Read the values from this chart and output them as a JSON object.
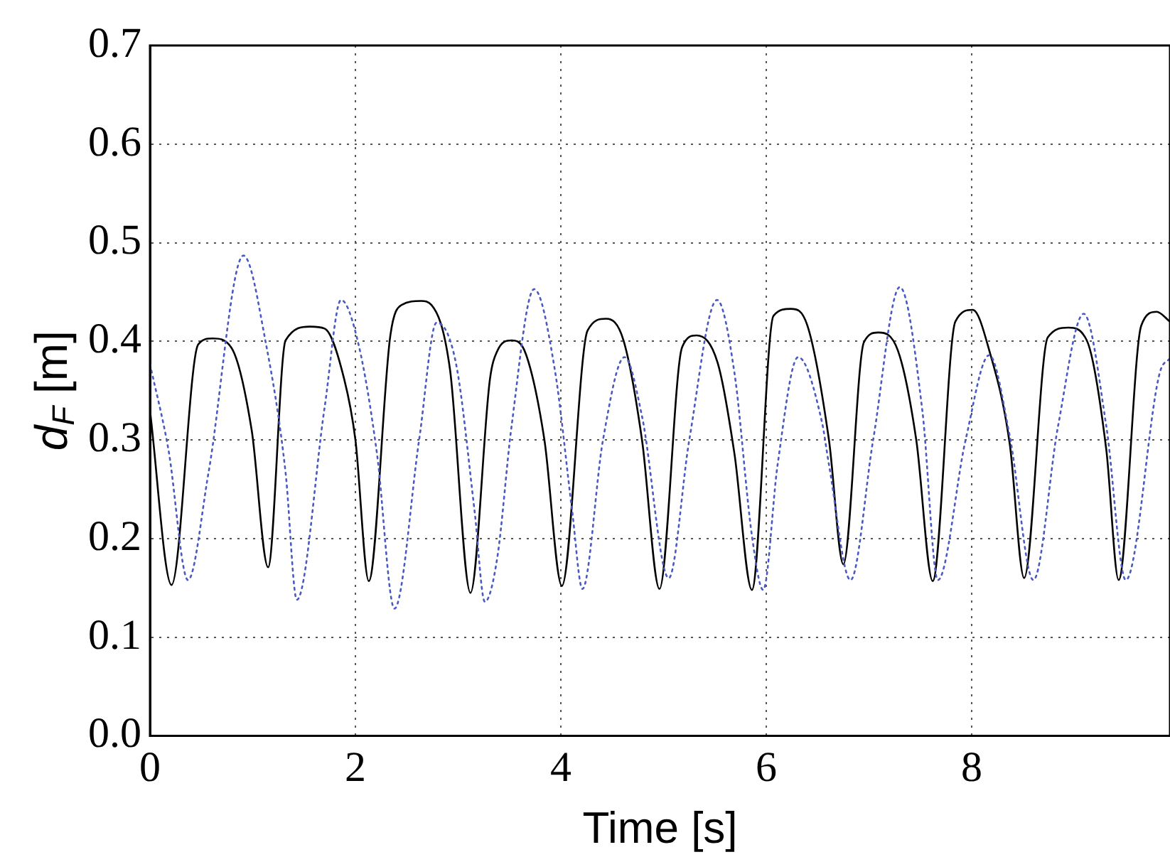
{
  "chart_data": {
    "type": "line",
    "xlabel": "Time [s]",
    "ylabel": "d$_{F}$ [m]",
    "xlim": [
      0,
      9.93
    ],
    "xticks": [
      0,
      2,
      4,
      6,
      8
    ],
    "ylim": [
      0,
      0.7
    ],
    "yticks": [
      {
        "value": 0,
        "label": "0.0"
      },
      0.1,
      0.2,
      0.3,
      0.4,
      0.5,
      0.6,
      0.7
    ],
    "grid": true,
    "marker": "none",
    "series": [
      {
        "color": "#4a5ac0",
        "line_style": "dotted",
        "x": [
          0,
          0.18,
          0.37,
          0.57,
          0.91,
          1.13,
          1.32,
          1.43,
          1.7,
          1.86,
          2.03,
          2.21,
          2.38,
          2.62,
          2.79,
          2.98,
          3.16,
          3.26,
          3.38,
          3.52,
          3.74,
          3.94,
          4.11,
          4.21,
          4.41,
          4.62,
          4.79,
          5.05,
          5.25,
          5.52,
          5.69,
          5.86,
          5.97,
          6.11,
          6.31,
          6.54,
          6.61,
          6.82,
          7.04,
          7.3,
          7.52,
          7.67,
          7.94,
          8.17,
          8.37,
          8.6,
          8.84,
          9.09,
          9.31,
          9.5,
          9.83,
          9.93
        ],
        "values": [
          0.377,
          0.29,
          0.158,
          0.267,
          0.487,
          0.397,
          0.267,
          0.138,
          0.333,
          0.442,
          0.397,
          0.286,
          0.129,
          0.3,
          0.419,
          0.377,
          0.228,
          0.136,
          0.18,
          0.314,
          0.453,
          0.372,
          0.228,
          0.149,
          0.3,
          0.384,
          0.324,
          0.16,
          0.3,
          0.442,
          0.368,
          0.203,
          0.148,
          0.275,
          0.384,
          0.319,
          0.275,
          0.158,
          0.3,
          0.455,
          0.329,
          0.158,
          0.3,
          0.386,
          0.304,
          0.158,
          0.314,
          0.428,
          0.314,
          0.158,
          0.368,
          0.383
        ]
      },
      {
        "color": "#000000",
        "line_style": "solid",
        "x": [
          0,
          0.21,
          0.47,
          0.61,
          0.79,
          0.99,
          1.15,
          1.32,
          1.56,
          1.7,
          1.89,
          2.0,
          2.13,
          2.34,
          2.45,
          2.64,
          2.74,
          2.92,
          3.12,
          3.31,
          3.38,
          3.52,
          3.66,
          3.84,
          4.01,
          4.26,
          4.44,
          4.61,
          4.79,
          4.96,
          5.18,
          5.32,
          5.53,
          5.69,
          5.86,
          6.07,
          6.24,
          6.4,
          6.61,
          6.75,
          6.95,
          7.09,
          7.28,
          7.46,
          7.62,
          7.84,
          8.01,
          8.17,
          8.37,
          8.51,
          8.74,
          8.94,
          9.12,
          9.31,
          9.43,
          9.65,
          9.8,
          9.93
        ],
        "values": [
          0.33,
          0.153,
          0.397,
          0.403,
          0.394,
          0.31,
          0.171,
          0.401,
          0.415,
          0.413,
          0.362,
          0.3,
          0.157,
          0.406,
          0.437,
          0.441,
          0.437,
          0.372,
          0.145,
          0.362,
          0.39,
          0.401,
          0.387,
          0.3,
          0.152,
          0.411,
          0.423,
          0.401,
          0.3,
          0.149,
          0.394,
          0.406,
          0.377,
          0.286,
          0.148,
          0.426,
          0.433,
          0.416,
          0.3,
          0.174,
          0.399,
          0.409,
          0.391,
          0.3,
          0.157,
          0.42,
          0.432,
          0.391,
          0.296,
          0.16,
          0.404,
          0.414,
          0.401,
          0.29,
          0.158,
          0.416,
          0.43,
          0.42
        ]
      }
    ]
  }
}
